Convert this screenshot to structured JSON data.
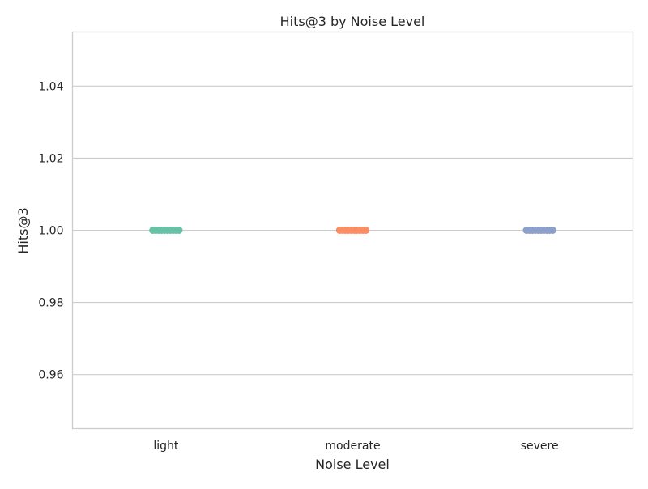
{
  "chart_data": {
    "type": "scatter",
    "title": "Hits@3 by Noise Level",
    "xlabel": "Noise Level",
    "ylabel": "Hits@3",
    "categories": [
      "light",
      "moderate",
      "severe"
    ],
    "ylim": [
      0.945,
      1.055
    ],
    "yticks": [
      0.96,
      0.98,
      1.0,
      1.02,
      1.04
    ],
    "ytick_labels": [
      "0.96",
      "0.98",
      "1.00",
      "1.02",
      "1.04"
    ],
    "grid": true,
    "series": [
      {
        "category": "light",
        "color": "#66c2a5",
        "values": [
          1.0,
          1.0,
          1.0,
          1.0,
          1.0,
          1.0,
          1.0,
          1.0,
          1.0,
          1.0
        ]
      },
      {
        "category": "moderate",
        "color": "#fc8d62",
        "values": [
          1.0,
          1.0,
          1.0,
          1.0,
          1.0,
          1.0,
          1.0,
          1.0,
          1.0,
          1.0
        ]
      },
      {
        "category": "severe",
        "color": "#8da0cb",
        "values": [
          1.0,
          1.0,
          1.0,
          1.0,
          1.0,
          1.0,
          1.0,
          1.0,
          1.0,
          1.0
        ]
      }
    ]
  }
}
